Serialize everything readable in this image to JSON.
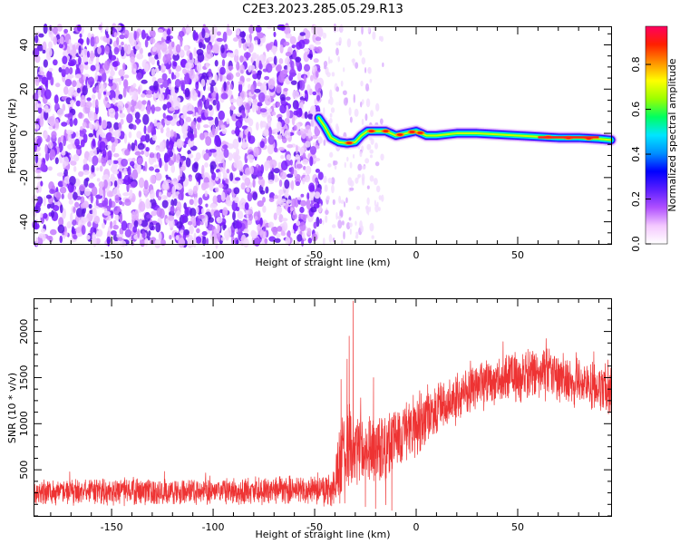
{
  "figure": {
    "title": "C2E3.2023.285.05.29.R13"
  },
  "chart_data": [
    {
      "type": "heatmap",
      "xlabel": "Height of straight line (km)",
      "ylabel": "Frequency (Hz)",
      "xlim": [
        -188,
        96
      ],
      "ylim": [
        -50,
        48
      ],
      "xticks": [
        -150,
        -100,
        -50,
        0,
        50
      ],
      "yticks": [
        -40,
        -20,
        0,
        20,
        40
      ],
      "grid": false,
      "colorbar": {
        "label": "Normalized spectral amplitude",
        "range": [
          0.0,
          0.97
        ],
        "ticks": [
          0.0,
          0.2,
          0.4,
          0.6,
          0.8
        ],
        "colormap": [
          "#ffffff",
          "#f4c8ff",
          "#b050ff",
          "#5a1eff",
          "#0000ff",
          "#0090ff",
          "#00e6ff",
          "#00ff60",
          "#9cff00",
          "#ffff00",
          "#ff9000",
          "#ff2000",
          "#ff0060"
        ]
      },
      "noise_region_x": [
        -188,
        -47
      ],
      "signal_track": {
        "x": [
          -48,
          -45,
          -42,
          -38,
          -34,
          -30,
          -27,
          -24,
          -20,
          -15,
          -10,
          -5,
          0,
          5,
          10,
          20,
          30,
          40,
          50,
          60,
          70,
          80,
          90,
          96
        ],
        "y": [
          7,
          3,
          -2,
          -4,
          -4.5,
          -4,
          -1,
          1,
          1,
          1,
          -1,
          0,
          1,
          -1,
          -1,
          0,
          0,
          -0.5,
          -1,
          -1.5,
          -2,
          -2,
          -2.5,
          -3
        ],
        "peak_x": [
          -33,
          -22,
          -15,
          -8,
          -2,
          2,
          65,
          75,
          85
        ]
      }
    },
    {
      "type": "line",
      "xlabel": "Height of straight line (km)",
      "ylabel": "SNR (10 * v/v)",
      "xlim": [
        -188,
        96
      ],
      "ylim": [
        0,
        2350
      ],
      "xticks": [
        -150,
        -100,
        -50,
        0,
        50
      ],
      "yticks": [
        500,
        1000,
        1500,
        2000
      ],
      "grid": false,
      "series": [
        {
          "color": "#ee3333",
          "envelope": {
            "x": [
              -188,
              -150,
              -100,
              -60,
              -42,
              -38,
              -35,
              -30,
              -20,
              -10,
              0,
              10,
              20,
              30,
              40,
              50,
              60,
              70,
              80,
              90,
              96
            ],
            "base": [
              260,
              265,
              270,
              280,
              290,
              500,
              700,
              700,
              700,
              850,
              1000,
              1150,
              1300,
              1420,
              1480,
              1520,
              1540,
              1520,
              1450,
              1380,
              1350
            ],
            "amp": [
              160,
              160,
              160,
              170,
              200,
              500,
              600,
              500,
              450,
              420,
              380,
              350,
              330,
              320,
              320,
              320,
              320,
              320,
              320,
              300,
              300
            ]
          },
          "spikes": [
            [
              -31,
              2330
            ],
            [
              -33,
              1950
            ],
            [
              -37,
              1480
            ],
            [
              -34,
              1700
            ],
            [
              -21,
              1500
            ]
          ],
          "dips": [
            [
              -25,
              100
            ],
            [
              -20,
              80
            ],
            [
              -15,
              120
            ],
            [
              -12,
              60
            ]
          ]
        }
      ]
    }
  ]
}
